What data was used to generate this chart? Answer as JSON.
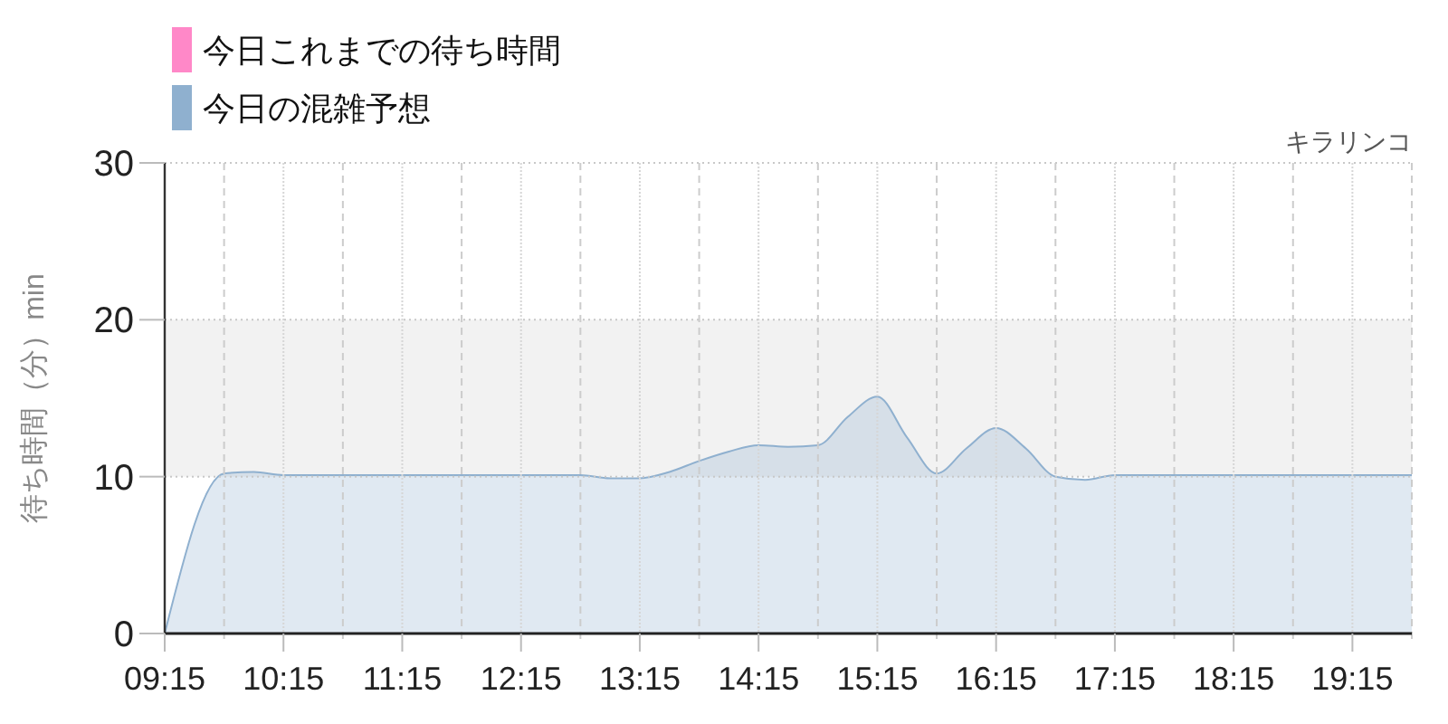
{
  "chart_data": {
    "type": "area",
    "title": "キラリンコ",
    "ylabel": "待ち時間（分）min",
    "x": [
      9.25,
      9.75,
      10.0,
      10.25,
      10.75,
      11.25,
      11.75,
      12.25,
      12.75,
      13.0,
      13.25,
      13.5,
      13.75,
      14.0,
      14.25,
      14.5,
      14.75,
      15.0,
      15.25,
      15.5,
      15.75,
      16.0,
      16.25,
      16.5,
      16.75,
      17.0,
      17.25,
      17.75,
      18.25,
      18.75,
      19.25,
      19.75
    ],
    "series": [
      {
        "name": "今日これまでの待ち時間",
        "color": "#ff88c8",
        "values": [
          null,
          null,
          null,
          null,
          null,
          null,
          null,
          null,
          null,
          null,
          null,
          null,
          null,
          null,
          null,
          null,
          null,
          null,
          null,
          null,
          null,
          null,
          null,
          null,
          null,
          null,
          null,
          null,
          null,
          null,
          null,
          null
        ]
      },
      {
        "name": "今日の混雑予想",
        "color": "#8fb0cf",
        "values": [
          0,
          10.2,
          10.3,
          10.1,
          10.1,
          10.1,
          10.1,
          10.1,
          10.1,
          9.9,
          9.9,
          10.3,
          11.0,
          11.6,
          12.0,
          11.9,
          12.0,
          13.8,
          15.1,
          12.5,
          10.2,
          11.8,
          13.1,
          11.8,
          10.0,
          9.8,
          10.1,
          10.1,
          10.1,
          10.1,
          10.1,
          10.1
        ]
      }
    ],
    "xlim": [
      9.25,
      19.75
    ],
    "xticks": [
      {
        "value": 9.25,
        "label": "09:15"
      },
      {
        "value": 9.75,
        "label": null
      },
      {
        "value": 10.25,
        "label": "10:15"
      },
      {
        "value": 10.75,
        "label": null
      },
      {
        "value": 11.25,
        "label": "11:15"
      },
      {
        "value": 11.75,
        "label": null
      },
      {
        "value": 12.25,
        "label": "12:15"
      },
      {
        "value": 12.75,
        "label": null
      },
      {
        "value": 13.25,
        "label": "13:15"
      },
      {
        "value": 13.75,
        "label": null
      },
      {
        "value": 14.25,
        "label": "14:15"
      },
      {
        "value": 14.75,
        "label": null
      },
      {
        "value": 15.25,
        "label": "15:15"
      },
      {
        "value": 15.75,
        "label": null
      },
      {
        "value": 16.25,
        "label": "16:15"
      },
      {
        "value": 16.75,
        "label": null
      },
      {
        "value": 17.25,
        "label": "17:15"
      },
      {
        "value": 17.75,
        "label": null
      },
      {
        "value": 18.25,
        "label": "18:15"
      },
      {
        "value": 18.75,
        "label": null
      },
      {
        "value": 19.25,
        "label": "19:15"
      },
      {
        "value": 19.75,
        "label": null
      }
    ],
    "ylim": [
      0,
      30
    ],
    "yticks": [
      0,
      10,
      20,
      30
    ],
    "bands": [
      {
        "axis": "y",
        "from": 10,
        "to": 20,
        "color": "#f2f2f2"
      }
    ],
    "grid": true,
    "legend": "top left"
  }
}
